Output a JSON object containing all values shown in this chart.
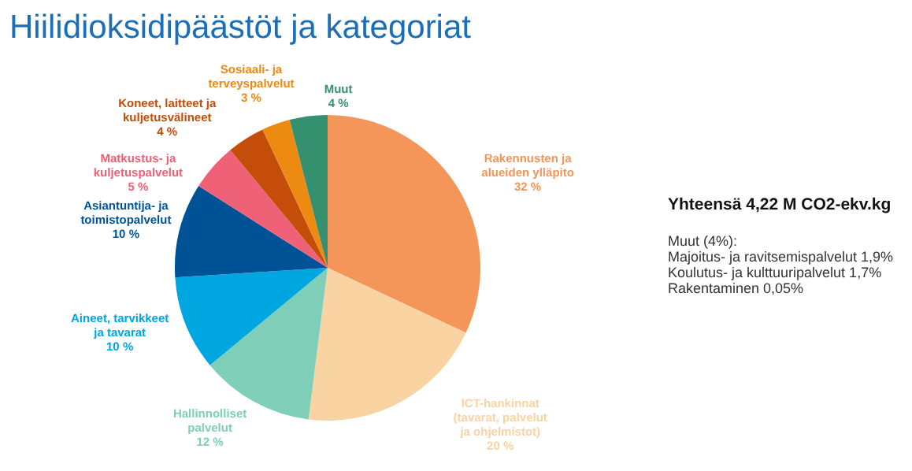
{
  "chart_data": {
    "type": "pie",
    "title": "Hiilidioksidipäästöt ja kategoriat",
    "categories": [
      "Rakennusten ja alueiden ylläpito",
      "ICT-hankinnat (tavarat, palvelut ja ohjelmistot)",
      "Hallinnolliset palvelut",
      "Aineet, tarvikkeet ja tavarat",
      "Asiantuntija- ja toimistopalvelut",
      "Matkustus- ja kuljetuspalvelut",
      "Koneet, laitteet ja kuljetusvälineet",
      "Sosiaali- ja terveyspalvelut",
      "Muut"
    ],
    "values": [
      32,
      20,
      12,
      10,
      10,
      5,
      4,
      3,
      4
    ],
    "colors": [
      "#f4955a",
      "#f9d3a2",
      "#7fcfb8",
      "#00a6df",
      "#005296",
      "#ef6176",
      "#c44d0a",
      "#ec8a12",
      "#35906f"
    ],
    "value_labels": [
      "32 %",
      "20 %",
      "12 %",
      "10 %",
      "10 %",
      "5 %",
      "4 %",
      "3 %",
      "4 %"
    ],
    "annotations": [
      "Yhteensä 4,22 M CO2-ekv.kg",
      "Muut (4%):",
      "Majoitus- ja ravitsemispalvelut 1,9%",
      "Koulutus- ja kulttuuripalvelut 1,7%",
      "Rakentaminen 0,05%"
    ]
  }
}
